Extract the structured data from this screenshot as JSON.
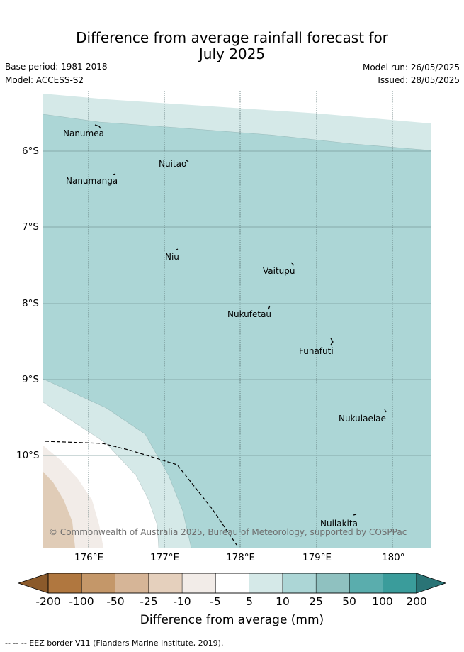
{
  "title": {
    "line1": "Difference from average rainfall forecast for",
    "line2": "July 2025"
  },
  "meta": {
    "base_period": "Base period: 1981-2018",
    "model": "Model: ACCESS-S2",
    "model_run": "Model run: 26/05/2025",
    "issued": "Issued: 28/05/2025"
  },
  "axes": {
    "lat_ticks": [
      "6°S",
      "7°S",
      "8°S",
      "9°S",
      "10°S"
    ],
    "lon_ticks": [
      "176°E",
      "177°E",
      "178°E",
      "179°E",
      "180°"
    ]
  },
  "places": [
    "Nanumea",
    "Nuitao",
    "Nanumanga",
    "Niu",
    "Vaitupu",
    "Nukufetau",
    "Funafuti",
    "Nukulaelae",
    "Nuilakita"
  ],
  "copyright": "© Commonwealth of Australia 2025, Bureau of Meteorology, supported by COSPPac",
  "colorbar": {
    "labels": [
      "-200",
      "-100",
      "-50",
      "-25",
      "-10",
      "-5",
      "5",
      "10",
      "25",
      "50",
      "100",
      "200"
    ],
    "colors": [
      "#8b5a2b",
      "#b0773f",
      "#c49769",
      "#d6b597",
      "#e5d0bd",
      "#f2ece8",
      "#ffffff",
      "#d5e9e8",
      "#acd6d6",
      "#8fc1c0",
      "#5aadad",
      "#3a9c9b",
      "#2a7476"
    ],
    "title": "Difference from average (mm)"
  },
  "footer": "--  --  -- EEZ border V11 (Flanders Marine Institute, 2019)."
}
